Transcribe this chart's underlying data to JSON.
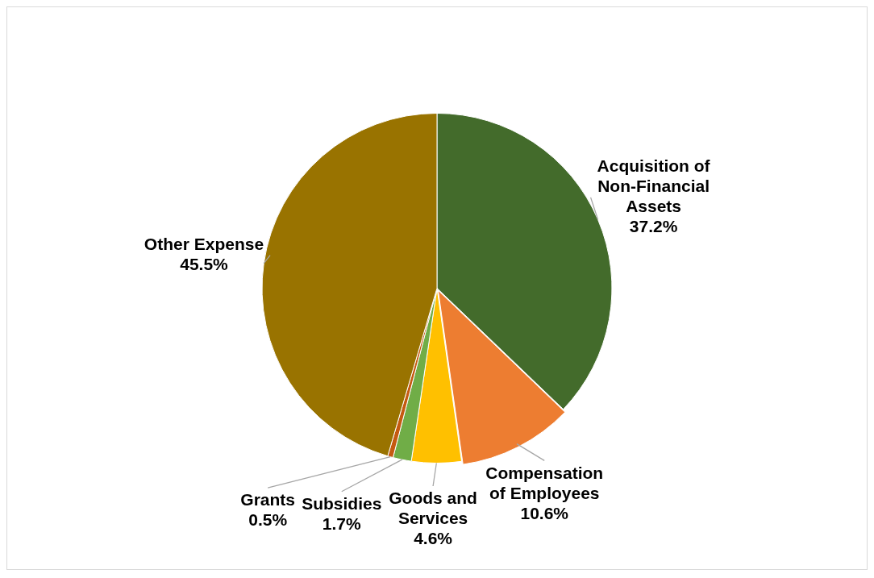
{
  "chart_data": {
    "type": "pie",
    "categories": [
      "Acquisition of Non-Financial Assets",
      "Compensation of Employees",
      "Goods and Services",
      "Subsidies",
      "Grants",
      "Other Expense"
    ],
    "values": [
      37.2,
      10.6,
      4.6,
      1.7,
      0.5,
      45.5
    ],
    "value_labels": [
      "37.2%",
      "10.6%",
      "4.6%",
      "1.7%",
      "0.5%",
      "45.5%"
    ],
    "colors": [
      "#436b2b",
      "#ed7d31",
      "#ffc000",
      "#70ad47",
      "#c55a11",
      "#997300"
    ],
    "legend": false
  }
}
